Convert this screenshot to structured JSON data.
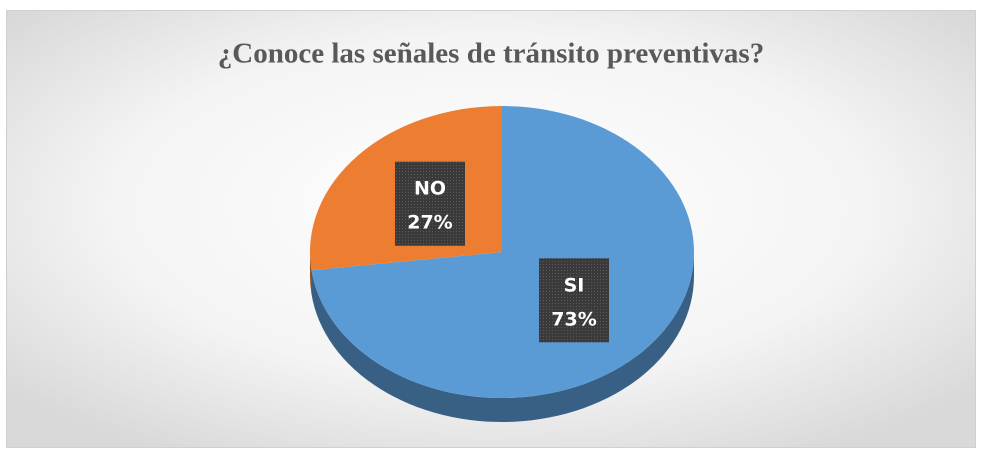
{
  "chart_data": {
    "type": "pie",
    "title": "¿Conoce las señales de tránsito preventivas?",
    "categories": [
      "SI",
      "NO"
    ],
    "values": [
      73,
      27
    ],
    "value_labels": [
      "73%",
      "27%"
    ],
    "colors": [
      "#5b9bd5",
      "#ed7d31"
    ]
  }
}
